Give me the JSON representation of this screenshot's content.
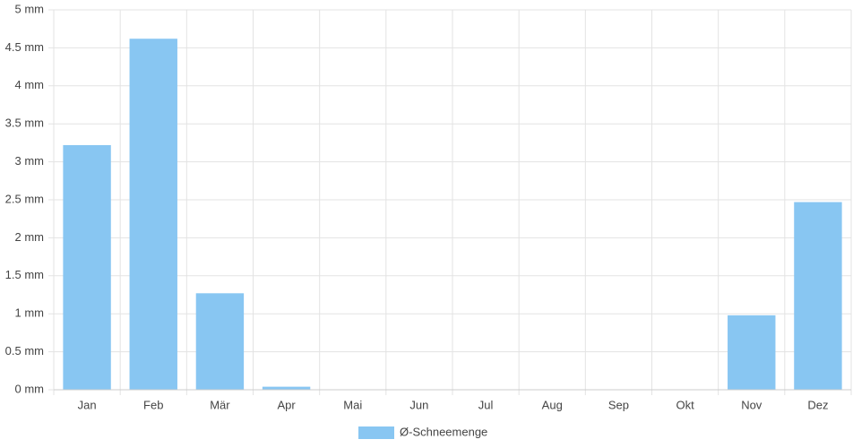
{
  "chart_data": {
    "type": "bar",
    "categories": [
      "Jan",
      "Feb",
      "Mär",
      "Apr",
      "Mai",
      "Jun",
      "Jul",
      "Aug",
      "Sep",
      "Okt",
      "Nov",
      "Dez"
    ],
    "series": [
      {
        "name": "Ø-Schneemenge",
        "color": "#88c6f2",
        "values": [
          3.22,
          4.62,
          1.27,
          0.04,
          0,
          0,
          0,
          0,
          0,
          0,
          0.98,
          2.47
        ]
      }
    ],
    "ylim": [
      0,
      5
    ],
    "yticks": [
      {
        "value": 0,
        "label": "0 mm"
      },
      {
        "value": 0.5,
        "label": "0.5 mm"
      },
      {
        "value": 1,
        "label": "1 mm"
      },
      {
        "value": 1.5,
        "label": "1.5 mm"
      },
      {
        "value": 2,
        "label": "2 mm"
      },
      {
        "value": 2.5,
        "label": "2.5 mm"
      },
      {
        "value": 3,
        "label": "3 mm"
      },
      {
        "value": 3.5,
        "label": "3.5 mm"
      },
      {
        "value": 4,
        "label": "4 mm"
      },
      {
        "value": 4.5,
        "label": "4.5 mm"
      },
      {
        "value": 5,
        "label": "5 mm"
      }
    ],
    "grid": true,
    "legend": "bottom"
  }
}
